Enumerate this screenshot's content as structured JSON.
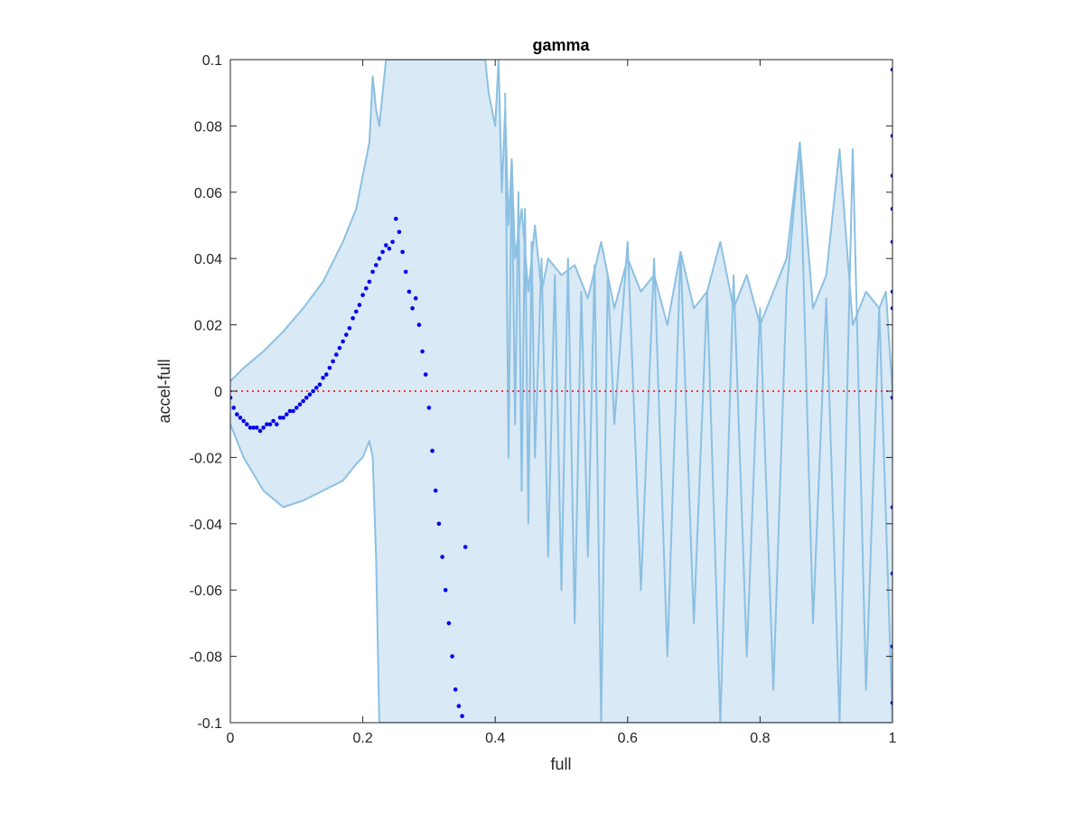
{
  "chart_data": {
    "type": "scatter",
    "title": "gamma",
    "xlabel": "full",
    "ylabel": "accel-full",
    "xlim": [
      0,
      1
    ],
    "ylim": [
      -0.1,
      0.1
    ],
    "xticks": [
      0,
      0.2,
      0.4,
      0.6,
      0.8,
      1
    ],
    "xtick_labels": [
      "0",
      "0.2",
      "0.4",
      "0.6",
      "0.8",
      "1"
    ],
    "yticks": [
      -0.1,
      -0.08,
      -0.06,
      -0.04,
      -0.02,
      0,
      0.02,
      0.04,
      0.06,
      0.08,
      0.1
    ],
    "ytick_labels": [
      "-0.1",
      "-0.08",
      "-0.06",
      "-0.04",
      "-0.02",
      "0",
      "0.02",
      "0.04",
      "0.06",
      "0.08",
      "0.1"
    ],
    "grid": false,
    "colors": {
      "band_fill": "#d9e9f5",
      "band_line": "#8cc0e2",
      "points": "#0000ee",
      "zero_line": "#ff3333",
      "axis": "#262626"
    },
    "zero_line": {
      "y": 0,
      "style": "dotted"
    },
    "band_upper": {
      "x": [
        0,
        0.02,
        0.05,
        0.08,
        0.11,
        0.14,
        0.17,
        0.19,
        0.2,
        0.21,
        0.215,
        0.22,
        0.225,
        0.23,
        0.235,
        0.24,
        0.245,
        0.25,
        0.26,
        0.3,
        0.36,
        0.38,
        0.385,
        0.39,
        0.4,
        0.405,
        0.41,
        0.415,
        0.42,
        0.425,
        0.43,
        0.44,
        0.45,
        0.46,
        0.47,
        0.48,
        0.5,
        0.52,
        0.54,
        0.56,
        0.58,
        0.6,
        0.62,
        0.64,
        0.66,
        0.68,
        0.7,
        0.72,
        0.74,
        0.76,
        0.78,
        0.8,
        0.82,
        0.84,
        0.86,
        0.88,
        0.9,
        0.92,
        0.94,
        0.96,
        0.98,
        0.99,
        1.0
      ],
      "y": [
        0.003,
        0.007,
        0.012,
        0.018,
        0.025,
        0.033,
        0.045,
        0.055,
        0.065,
        0.075,
        0.095,
        0.085,
        0.08,
        0.09,
        0.1,
        0.1,
        0.1,
        0.1,
        0.1,
        0.1,
        0.1,
        0.1,
        0.1,
        0.09,
        0.08,
        0.1,
        0.06,
        0.085,
        0.05,
        0.07,
        0.04,
        0.055,
        0.03,
        0.05,
        0.03,
        0.04,
        0.035,
        0.038,
        0.028,
        0.045,
        0.025,
        0.04,
        0.03,
        0.035,
        0.02,
        0.042,
        0.025,
        0.03,
        0.045,
        0.025,
        0.035,
        0.02,
        0.03,
        0.04,
        0.075,
        0.025,
        0.035,
        0.073,
        0.02,
        0.03,
        0.025,
        0.03,
        0.0
      ]
    },
    "band_lower": {
      "x": [
        0,
        0.02,
        0.05,
        0.08,
        0.11,
        0.14,
        0.17,
        0.19,
        0.2,
        0.21,
        0.215,
        0.22,
        0.225,
        0.23,
        0.235,
        0.24,
        0.245,
        0.25,
        0.26,
        0.3,
        0.36,
        0.38,
        0.385,
        0.39,
        0.4,
        0.405,
        0.41,
        0.415,
        0.42,
        0.425,
        0.43,
        0.44,
        0.45,
        0.46,
        0.47,
        0.48,
        0.5,
        0.52,
        0.54,
        0.56,
        0.58,
        0.6,
        0.62,
        0.64,
        0.66,
        0.68,
        0.7,
        0.72,
        0.74,
        0.76,
        0.78,
        0.8,
        0.82,
        0.84,
        0.86,
        0.88,
        0.9,
        0.92,
        0.94,
        0.96,
        0.98,
        0.99,
        1.0
      ],
      "y": [
        -0.01,
        -0.02,
        -0.03,
        -0.035,
        -0.033,
        -0.03,
        -0.027,
        -0.022,
        -0.02,
        -0.015,
        -0.02,
        -0.05,
        -0.1,
        -0.1,
        -0.1,
        -0.1,
        -0.1,
        -0.1,
        -0.1,
        -0.1,
        -0.1,
        -0.1,
        -0.1,
        -0.1,
        -0.1,
        -0.1,
        -0.1,
        -0.1,
        -0.1,
        -0.1,
        -0.1,
        -0.1,
        -0.1,
        -0.1,
        -0.1,
        -0.1,
        -0.1,
        -0.1,
        -0.1,
        -0.1,
        -0.1,
        -0.1,
        -0.1,
        -0.1,
        -0.1,
        -0.1,
        -0.1,
        -0.1,
        -0.1,
        -0.1,
        -0.1,
        -0.1,
        -0.1,
        -0.1,
        -0.1,
        -0.1,
        -0.1,
        -0.1,
        -0.1,
        -0.1,
        -0.1,
        -0.1,
        -0.1
      ]
    },
    "band_zigzag": {
      "x": [
        0.415,
        0.42,
        0.425,
        0.43,
        0.435,
        0.44,
        0.445,
        0.45,
        0.455,
        0.46,
        0.47,
        0.48,
        0.49,
        0.5,
        0.51,
        0.52,
        0.53,
        0.54,
        0.55,
        0.56,
        0.57,
        0.58,
        0.6,
        0.62,
        0.64,
        0.66,
        0.68,
        0.7,
        0.72,
        0.74,
        0.76,
        0.78,
        0.8,
        0.82,
        0.84,
        0.86,
        0.88,
        0.9,
        0.92,
        0.94,
        0.96,
        0.98,
        1.0
      ],
      "y": [
        0.09,
        -0.02,
        0.07,
        -0.01,
        0.06,
        -0.03,
        0.055,
        -0.04,
        0.045,
        -0.02,
        0.04,
        -0.05,
        0.035,
        -0.06,
        0.04,
        -0.07,
        0.03,
        -0.05,
        0.038,
        -0.1,
        0.035,
        -0.01,
        0.045,
        -0.06,
        0.04,
        -0.08,
        0.042,
        -0.07,
        0.03,
        -0.1,
        0.035,
        -0.08,
        0.025,
        -0.09,
        0.03,
        0.075,
        -0.07,
        0.028,
        -0.1,
        0.073,
        -0.09,
        0.025,
        -0.1
      ]
    },
    "series": [
      {
        "x": [
          0.0,
          0.005,
          0.01,
          0.015,
          0.02,
          0.025,
          0.03,
          0.035,
          0.04,
          0.045,
          0.05,
          0.055,
          0.06,
          0.065,
          0.07,
          0.075,
          0.08,
          0.085,
          0.09,
          0.095,
          0.1,
          0.105,
          0.11,
          0.115,
          0.12,
          0.125,
          0.13,
          0.135,
          0.14,
          0.145,
          0.15,
          0.155,
          0.16,
          0.165,
          0.17,
          0.175,
          0.18,
          0.185,
          0.19,
          0.195,
          0.2,
          0.205,
          0.21,
          0.215,
          0.22,
          0.225,
          0.23,
          0.235,
          0.24,
          0.245,
          0.25,
          0.255,
          0.26,
          0.265,
          0.27,
          0.275,
          0.28,
          0.285,
          0.29,
          0.295,
          0.3,
          0.305,
          0.31,
          0.315,
          0.32,
          0.325,
          0.33,
          0.335,
          0.34,
          0.345,
          0.35,
          0.355,
          1.0,
          1.0,
          1.0,
          1.0,
          1.0,
          1.0,
          1.0,
          1.0,
          1.0,
          1.0,
          1.0,
          1.0
        ],
        "y": [
          -0.002,
          -0.005,
          -0.007,
          -0.008,
          -0.009,
          -0.01,
          -0.011,
          -0.011,
          -0.011,
          -0.012,
          -0.011,
          -0.01,
          -0.01,
          -0.009,
          -0.01,
          -0.008,
          -0.008,
          -0.007,
          -0.006,
          -0.006,
          -0.005,
          -0.004,
          -0.003,
          -0.002,
          -0.001,
          0.0,
          0.001,
          0.002,
          0.004,
          0.005,
          0.007,
          0.009,
          0.011,
          0.013,
          0.015,
          0.017,
          0.019,
          0.022,
          0.024,
          0.026,
          0.029,
          0.031,
          0.033,
          0.036,
          0.038,
          0.04,
          0.042,
          0.044,
          0.043,
          0.045,
          0.052,
          0.048,
          0.042,
          0.036,
          0.03,
          0.025,
          0.028,
          0.02,
          0.012,
          0.005,
          -0.005,
          -0.018,
          -0.03,
          -0.04,
          -0.05,
          -0.06,
          -0.07,
          -0.08,
          -0.09,
          -0.095,
          -0.098,
          -0.047,
          0.097,
          0.077,
          0.065,
          0.055,
          0.045,
          0.03,
          0.025,
          -0.002,
          -0.035,
          -0.055,
          -0.077,
          -0.094
        ]
      }
    ]
  }
}
